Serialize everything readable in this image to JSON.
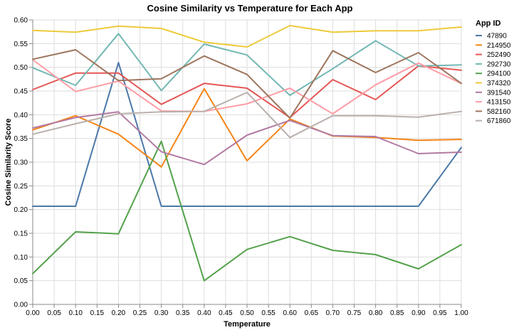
{
  "chart_data": {
    "type": "line",
    "title": "Cosine Similarity vs Temperature for Each App",
    "xlabel": "Temperature",
    "ylabel": "Cosine Similarity Score",
    "xlim": [
      0,
      1
    ],
    "ylim": [
      0,
      0.6
    ],
    "x_ticks": [
      "0.00",
      "0.05",
      "0.10",
      "0.15",
      "0.20",
      "0.25",
      "0.30",
      "0.35",
      "0.40",
      "0.45",
      "0.50",
      "0.55",
      "0.60",
      "0.65",
      "0.70",
      "0.75",
      "0.80",
      "0.85",
      "0.90",
      "0.95",
      "1.00"
    ],
    "x_tick_values": [
      0,
      0.05,
      0.1,
      0.15,
      0.2,
      0.25,
      0.3,
      0.35,
      0.4,
      0.45,
      0.5,
      0.55,
      0.6,
      0.65,
      0.7,
      0.75,
      0.8,
      0.85,
      0.9,
      0.95,
      1.0
    ],
    "y_ticks": [
      "0.00",
      "0.05",
      "0.10",
      "0.15",
      "0.20",
      "0.25",
      "0.30",
      "0.35",
      "0.40",
      "0.45",
      "0.50",
      "0.55",
      "0.60"
    ],
    "y_tick_values": [
      0,
      0.05,
      0.1,
      0.15,
      0.2,
      0.25,
      0.3,
      0.35,
      0.4,
      0.45,
      0.5,
      0.55,
      0.6
    ],
    "grid": true,
    "legend_title": "App ID",
    "legend_position": "right",
    "x": [
      0,
      0.1,
      0.2,
      0.3,
      0.4,
      0.5,
      0.6,
      0.7,
      0.8,
      0.9,
      1.0
    ],
    "series": [
      {
        "name": "47890",
        "color": "#4c78a8",
        "values": [
          0.207,
          0.207,
          0.51,
          0.207,
          0.207,
          0.207,
          0.207,
          0.207,
          0.207,
          0.207,
          0.331
        ]
      },
      {
        "name": "214950",
        "color": "#f58518",
        "values": [
          0.368,
          0.398,
          0.359,
          0.29,
          0.455,
          0.303,
          0.391,
          0.355,
          0.352,
          0.346,
          0.348
        ]
      },
      {
        "name": "252490",
        "color": "#e45756",
        "values": [
          0.453,
          0.488,
          0.488,
          0.422,
          0.466,
          0.456,
          0.394,
          0.474,
          0.432,
          0.503,
          0.494
        ]
      },
      {
        "name": "292730",
        "color": "#72b7b2",
        "values": [
          0.499,
          0.462,
          0.571,
          0.451,
          0.549,
          0.526,
          0.441,
          0.497,
          0.556,
          0.503,
          0.505
        ]
      },
      {
        "name": "294100",
        "color": "#54a24b",
        "values": [
          0.065,
          0.153,
          0.149,
          0.344,
          0.05,
          0.116,
          0.143,
          0.114,
          0.105,
          0.075,
          0.126
        ]
      },
      {
        "name": "374320",
        "color": "#eeca3b",
        "values": [
          0.578,
          0.574,
          0.587,
          0.582,
          0.553,
          0.543,
          0.588,
          0.574,
          0.577,
          0.577,
          0.585
        ]
      },
      {
        "name": "391540",
        "color": "#b279a2",
        "values": [
          0.372,
          0.394,
          0.406,
          0.322,
          0.295,
          0.357,
          0.388,
          0.356,
          0.354,
          0.318,
          0.321
        ]
      },
      {
        "name": "413150",
        "color": "#ff9da6",
        "values": [
          0.516,
          0.449,
          0.471,
          0.408,
          0.407,
          0.423,
          0.456,
          0.402,
          0.463,
          0.509,
          0.466
        ]
      },
      {
        "name": "582160",
        "color": "#9d755d",
        "values": [
          0.517,
          0.537,
          0.472,
          0.476,
          0.524,
          0.485,
          0.393,
          0.535,
          0.489,
          0.531,
          0.466
        ]
      },
      {
        "name": "671860",
        "color": "#bab0ac",
        "values": [
          0.359,
          0.381,
          0.402,
          0.406,
          0.407,
          0.447,
          0.352,
          0.398,
          0.398,
          0.395,
          0.407
        ]
      }
    ]
  }
}
